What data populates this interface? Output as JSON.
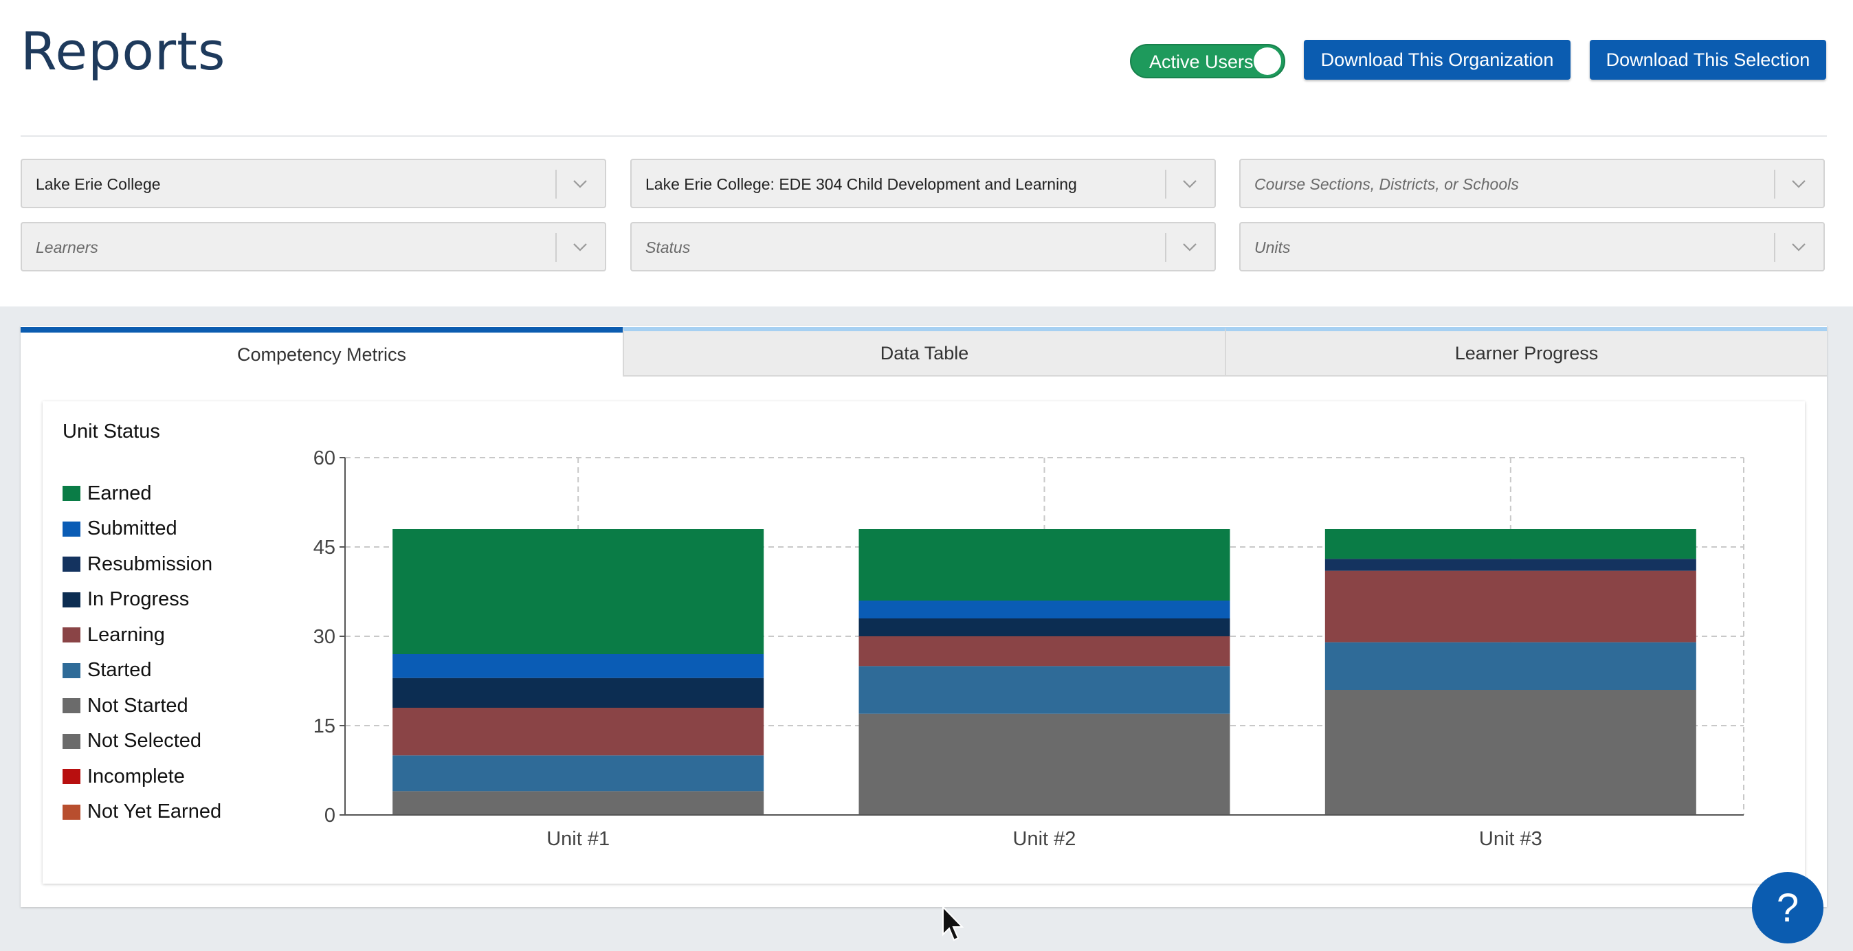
{
  "header": {
    "title": "Reports",
    "toggle_label": "Active Users",
    "download_org_label": "Download This Organization",
    "download_selection_label": "Download This Selection"
  },
  "filters": {
    "organization": "Lake Erie College",
    "course": "Lake Erie College: EDE 304 Child Development and Learning",
    "sections_placeholder": "Course Sections, Districts, or Schools",
    "learners_placeholder": "Learners",
    "status_placeholder": "Status",
    "units_placeholder": "Units"
  },
  "tabs": [
    {
      "label": "Competency Metrics"
    },
    {
      "label": "Data Table"
    },
    {
      "label": "Learner Progress"
    }
  ],
  "help_label": "?",
  "chart_data": {
    "type": "bar",
    "stacked": true,
    "title": "Unit Status",
    "categories": [
      "Unit #1",
      "Unit #2",
      "Unit #3"
    ],
    "ylim": [
      0,
      60
    ],
    "yticks": [
      0,
      15,
      30,
      45,
      60
    ],
    "grid": true,
    "legend_position": "left",
    "series": [
      {
        "name": "Not Started",
        "color": "#6b6b6b",
        "values": [
          4,
          17,
          21
        ]
      },
      {
        "name": "Not Selected",
        "color": "#6b6b6b",
        "values": [
          0,
          0,
          0
        ]
      },
      {
        "name": "Started",
        "color": "#2f6b98",
        "values": [
          6,
          8,
          8
        ]
      },
      {
        "name": "Learning",
        "color": "#8a4446",
        "values": [
          8,
          5,
          12
        ]
      },
      {
        "name": "In Progress",
        "color": "#0c2d52",
        "values": [
          5,
          3,
          0
        ]
      },
      {
        "name": "Resubmission",
        "color": "#14335f",
        "values": [
          0,
          0,
          2
        ]
      },
      {
        "name": "Submitted",
        "color": "#0a5cb5",
        "values": [
          4,
          3,
          0
        ]
      },
      {
        "name": "Earned",
        "color": "#0a7c46",
        "values": [
          21,
          12,
          5
        ]
      },
      {
        "name": "Incomplete",
        "color": "#b80f0f",
        "values": [
          0,
          0,
          0
        ]
      },
      {
        "name": "Not Yet Earned",
        "color": "#b84e2e",
        "values": [
          0,
          0,
          0
        ]
      }
    ],
    "legend_order": [
      "Earned",
      "Submitted",
      "Resubmission",
      "In Progress",
      "Learning",
      "Started",
      "Not Started",
      "Not Selected",
      "Incomplete",
      "Not Yet Earned"
    ]
  }
}
